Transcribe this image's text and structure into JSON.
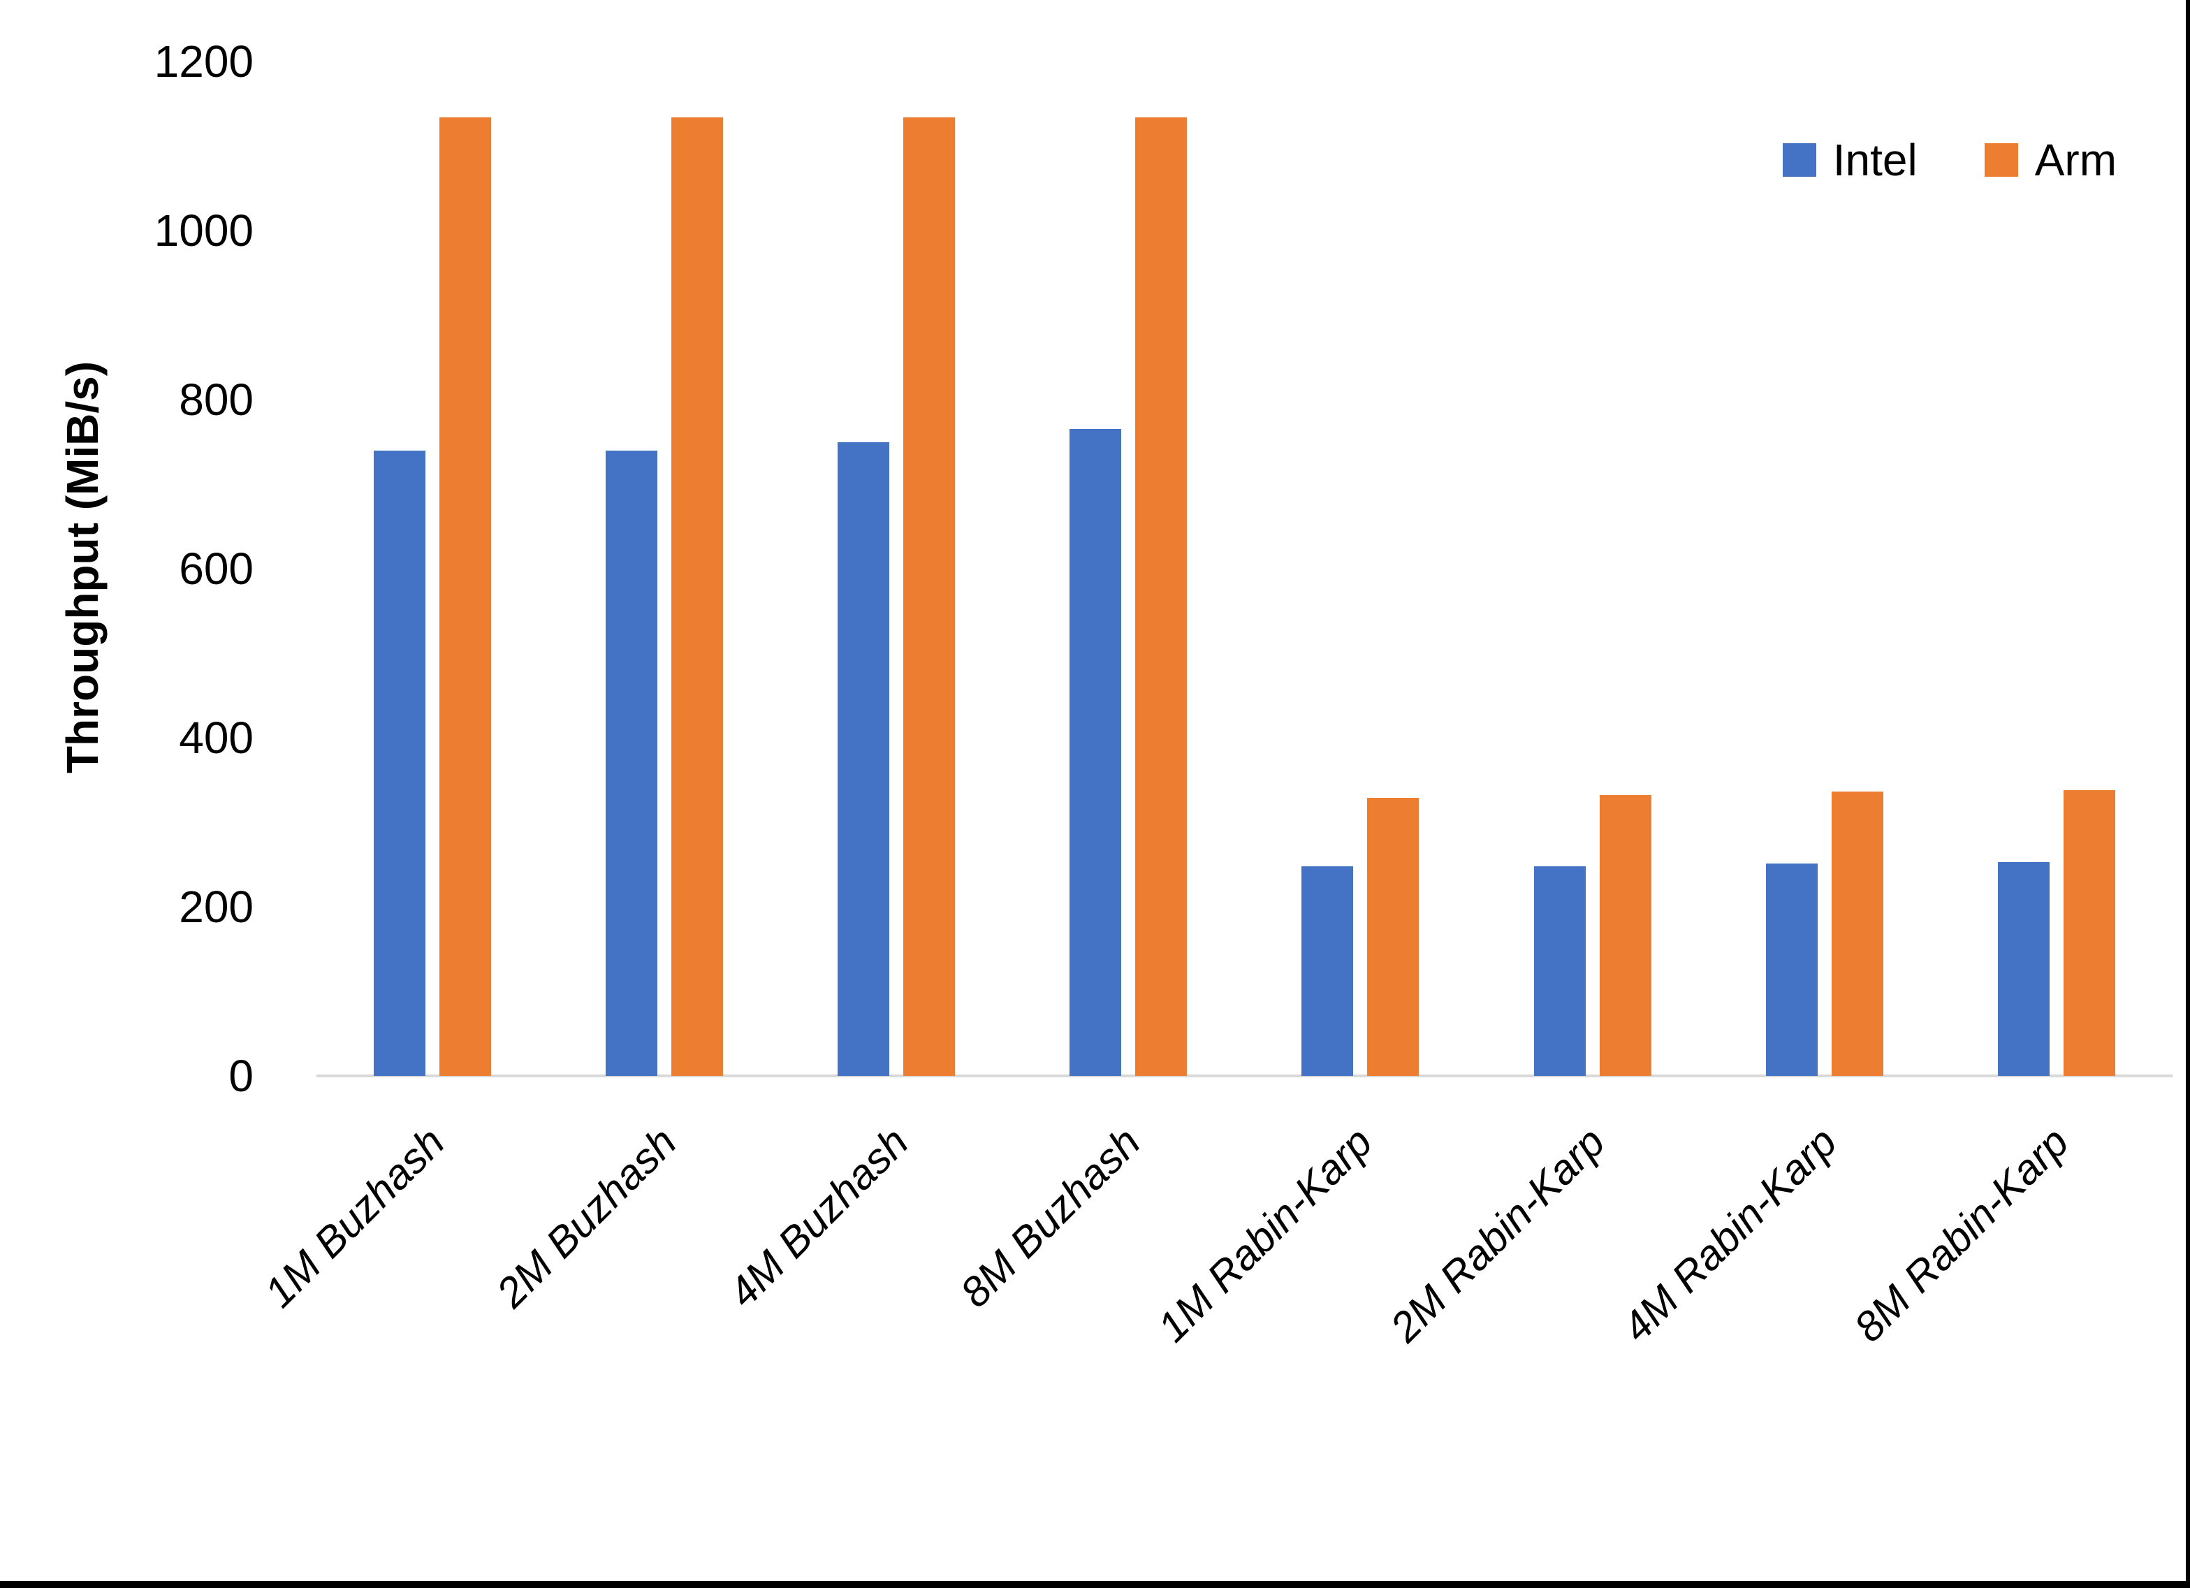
{
  "chart_data": {
    "type": "bar",
    "title": "",
    "xlabel": "",
    "ylabel": "Throughput (MiB/s)",
    "ylim": [
      0,
      1200
    ],
    "yticks": [
      0,
      200,
      400,
      600,
      800,
      1000,
      1200
    ],
    "grid": false,
    "axis_line_color": "#d9d9d9",
    "legend_position": "top-right",
    "categories": [
      "1M Buzhash",
      "2M Buzhash",
      "4M Buzhash",
      "8M Buzhash",
      "1M Rabin-Karp",
      "2M Rabin-Karp",
      "4M Rabin-Karp",
      "8M Rabin-Karp"
    ],
    "series": [
      {
        "name": "Intel",
        "color": "#4472C4",
        "values": [
          740,
          740,
          750,
          765,
          248,
          248,
          251,
          253
        ]
      },
      {
        "name": "Arm",
        "color": "#ED7D31",
        "values": [
          1134,
          1134,
          1134,
          1134,
          329,
          332,
          336,
          338
        ]
      }
    ]
  },
  "page": {
    "border_color": "#000000"
  }
}
